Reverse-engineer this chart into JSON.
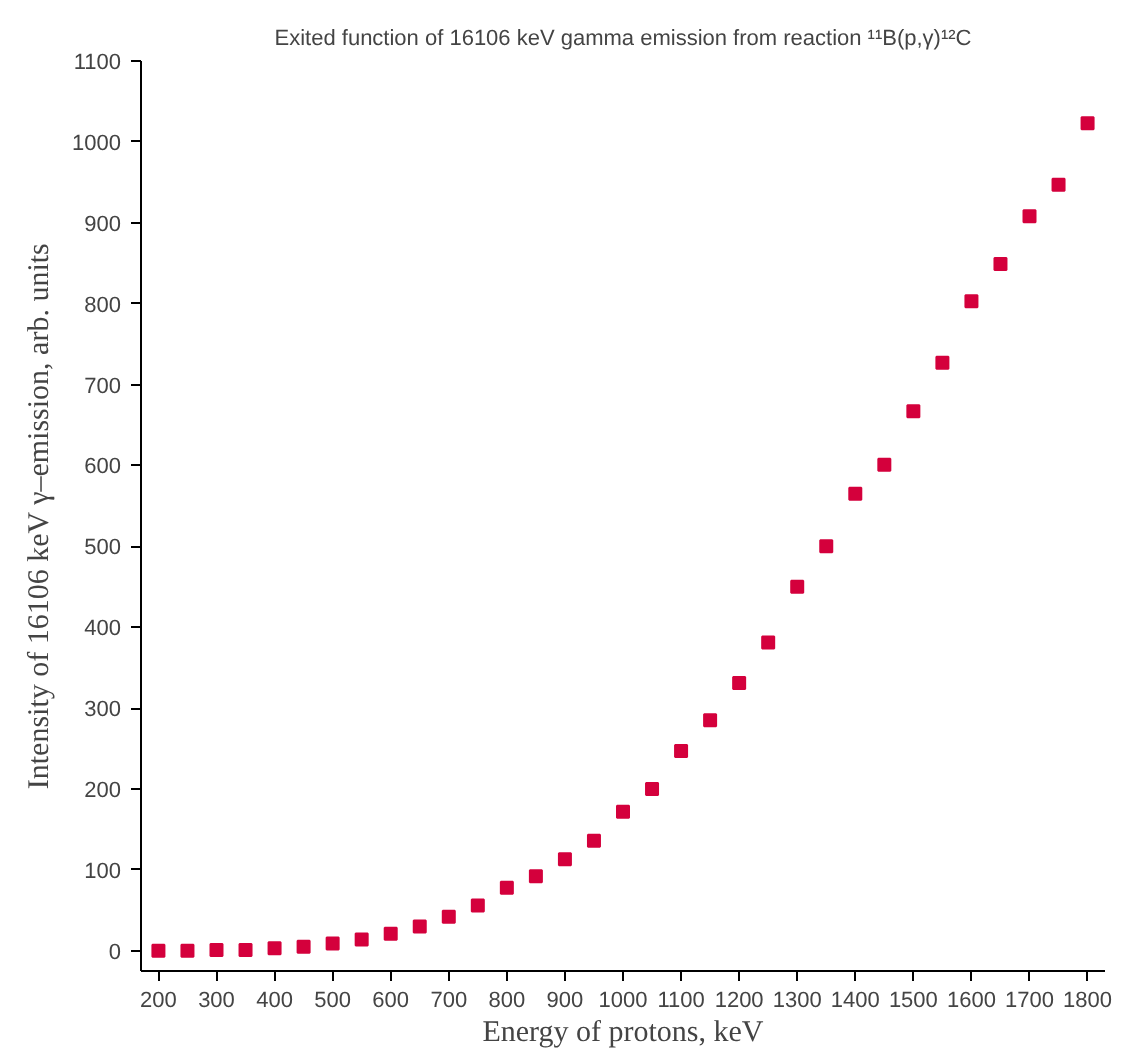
{
  "chart_data": {
    "type": "scatter",
    "title": "Exited function of 16106 keV gamma emission from reaction ¹¹B(p,γ)¹²C",
    "xlabel": "Energy of protons, keV",
    "ylabel": "Intensity of 16106 keV γ–emission, arb. units",
    "x": [
      200,
      250,
      300,
      350,
      400,
      450,
      500,
      550,
      600,
      650,
      700,
      750,
      800,
      850,
      900,
      950,
      1000,
      1050,
      1100,
      1150,
      1200,
      1250,
      1300,
      1350,
      1400,
      1450,
      1500,
      1550,
      1600,
      1650,
      1700,
      1750,
      1800
    ],
    "series": [
      {
        "color": "#d4003c",
        "values": [
          0,
          0,
          1,
          1,
          3,
          5,
          9,
          14,
          21,
          30,
          42,
          56,
          78,
          92,
          113,
          136,
          172,
          200,
          247,
          285,
          331,
          381,
          450,
          500,
          565,
          601,
          667,
          727,
          803,
          849,
          908,
          947,
          1023
        ]
      }
    ],
    "xlim": [
      170,
      1830
    ],
    "ylim": [
      -25,
      1100
    ],
    "xticks": [
      200,
      300,
      400,
      500,
      600,
      700,
      800,
      900,
      1000,
      1100,
      1200,
      1300,
      1400,
      1500,
      1600,
      1700,
      1800
    ],
    "yticks": [
      0,
      100,
      200,
      300,
      400,
      500,
      600,
      700,
      800,
      900,
      1000,
      1100
    ],
    "marker": "square"
  }
}
